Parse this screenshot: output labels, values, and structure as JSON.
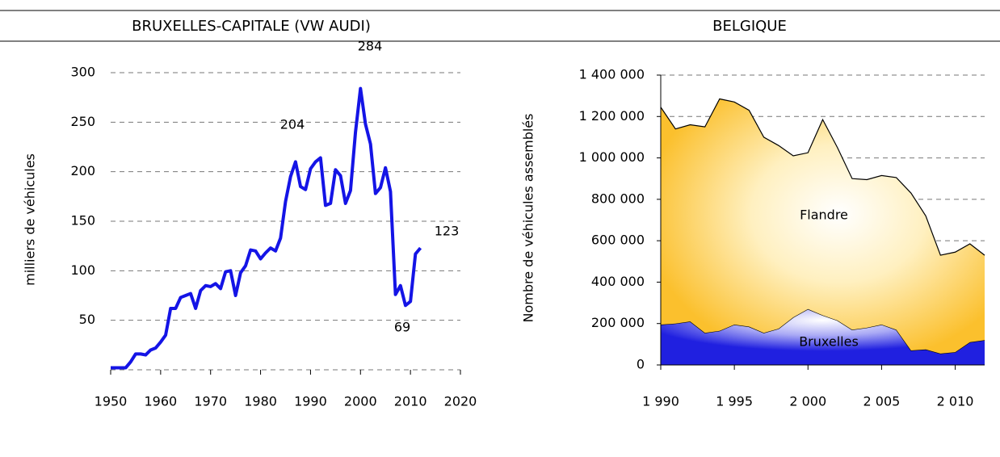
{
  "chart_data": [
    {
      "type": "line",
      "title": "BRUXELLES-CAPITALE (VW AUDI)",
      "y_label": "milliers de véhicules",
      "x": [
        1950,
        1951,
        1952,
        1953,
        1954,
        1955,
        1956,
        1957,
        1958,
        1959,
        1960,
        1961,
        1962,
        1963,
        1964,
        1965,
        1966,
        1967,
        1968,
        1969,
        1970,
        1971,
        1972,
        1973,
        1974,
        1975,
        1976,
        1977,
        1978,
        1979,
        1980,
        1981,
        1982,
        1983,
        1984,
        1985,
        1986,
        1987,
        1988,
        1989,
        1990,
        1991,
        1992,
        1993,
        1994,
        1995,
        1996,
        1997,
        1998,
        1999,
        2000,
        2001,
        2002,
        2003,
        2004,
        2005,
        2006,
        2007,
        2008,
        2009,
        2010,
        2011,
        2012
      ],
      "values": [
        2,
        2,
        2,
        2,
        8,
        16,
        16,
        15,
        20,
        22,
        28,
        35,
        62,
        62,
        73,
        75,
        77,
        62,
        80,
        85,
        84,
        87,
        82,
        99,
        100,
        75,
        98,
        105,
        121,
        120,
        112,
        118,
        123,
        120,
        133,
        170,
        195,
        210,
        185,
        182,
        203,
        210,
        214,
        166,
        168,
        202,
        196,
        168,
        181,
        240,
        284,
        248,
        228,
        178,
        184,
        204,
        180,
        76,
        85,
        65,
        69,
        117,
        123
      ],
      "color": "#1414e6",
      "annotations": [
        "284",
        "204",
        "123",
        "69"
      ],
      "xlim": [
        1950,
        2020
      ],
      "xticks": [
        1950,
        1960,
        1970,
        1980,
        1990,
        2000,
        2010,
        2020
      ],
      "ylim": [
        0,
        300
      ],
      "yticks": [
        50,
        100,
        150,
        200,
        250,
        300
      ],
      "grid": true
    },
    {
      "type": "area",
      "stacked": true,
      "title": "BELGIQUE",
      "y_label": "Nombre de véhicules assemblés",
      "x": [
        1990,
        1991,
        1992,
        1993,
        1994,
        1995,
        1996,
        1997,
        1998,
        1999,
        2000,
        2001,
        2002,
        2003,
        2004,
        2005,
        2006,
        2007,
        2008,
        2009,
        2010,
        2011,
        2012
      ],
      "series": [
        {
          "name": "Bruxelles",
          "color": "#3333ee",
          "values": [
            195000,
            200000,
            210000,
            155000,
            165000,
            195000,
            185000,
            155000,
            175000,
            230000,
            270000,
            240000,
            215000,
            170000,
            180000,
            195000,
            170000,
            70000,
            75000,
            55000,
            62000,
            110000,
            120000
          ]
        },
        {
          "name": "Flandre",
          "color": "#ffc020",
          "values": [
            1050000,
            940000,
            950000,
            995000,
            1120000,
            1075000,
            1045000,
            945000,
            885000,
            780000,
            755000,
            945000,
            835000,
            730000,
            715000,
            720000,
            735000,
            760000,
            645000,
            475000,
            483000,
            475000,
            410000
          ]
        }
      ],
      "xlim": [
        1990,
        2012
      ],
      "xticks": [
        {
          "value": 1990,
          "label": "1 990"
        },
        {
          "value": 1995,
          "label": "1 995"
        },
        {
          "value": 2000,
          "label": "2 000"
        },
        {
          "value": 2005,
          "label": "2 005"
        },
        {
          "value": 2010,
          "label": "2 010"
        }
      ],
      "ylim": [
        0,
        1400000
      ],
      "yticks": [
        0,
        {
          "value": 200000,
          "label": "200 000"
        },
        {
          "value": 400000,
          "label": "400 000"
        },
        {
          "value": 600000,
          "label": "600 000"
        },
        {
          "value": 800000,
          "label": "800 000"
        },
        {
          "value": 1000000,
          "label": "1 000 000"
        },
        {
          "value": 1200000,
          "label": "1 200 000"
        },
        {
          "value": 1400000,
          "label": "1 400 000"
        }
      ],
      "grid": true
    }
  ]
}
